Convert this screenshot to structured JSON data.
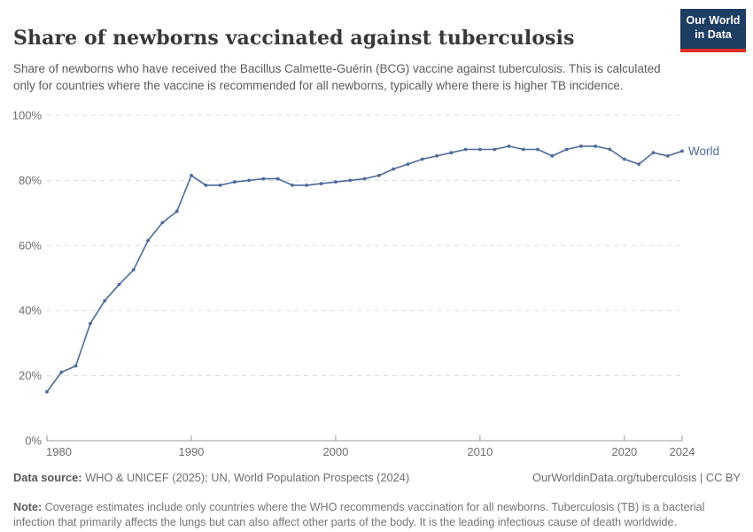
{
  "header": {
    "title": "Share of newborns vaccinated against tuberculosis",
    "subtitle": "Share of newborns who have received the Bacillus Calmette-Guérin (BCG) vaccine against tuberculosis. This is calculated only for countries where the vaccine is recommended for all newborns, typically where there is higher TB incidence.",
    "logo": {
      "line1": "Our World",
      "line2": "in Data",
      "bg_color": "#1d3d63",
      "stripe_color": "#dc3022"
    }
  },
  "chart_data": {
    "type": "line",
    "title": "Share of newborns vaccinated against tuberculosis",
    "xlabel": "",
    "ylabel": "",
    "xlim": [
      1980,
      2024
    ],
    "ylim": [
      0,
      100
    ],
    "grid": "horizontal-dashed",
    "legend_position": "end-of-line-label",
    "x_ticks": [
      1980,
      1990,
      2000,
      2010,
      2020,
      2024
    ],
    "x_tick_labels": [
      "1980",
      "1990",
      "2000",
      "2010",
      "2020",
      "2024"
    ],
    "y_ticks": [
      0,
      20,
      40,
      60,
      80,
      100
    ],
    "y_tick_labels": [
      "0%",
      "20%",
      "40%",
      "60%",
      "80%",
      "100%"
    ],
    "series": [
      {
        "name": "World",
        "color": "#4c6a9c",
        "x": [
          1980,
          1981,
          1982,
          1983,
          1984,
          1985,
          1986,
          1987,
          1988,
          1989,
          1990,
          1991,
          1992,
          1993,
          1994,
          1995,
          1996,
          1997,
          1998,
          1999,
          2000,
          2001,
          2002,
          2003,
          2004,
          2005,
          2006,
          2007,
          2008,
          2009,
          2010,
          2011,
          2012,
          2013,
          2014,
          2015,
          2016,
          2017,
          2018,
          2019,
          2020,
          2021,
          2022,
          2023,
          2024
        ],
        "values": [
          15,
          21,
          23,
          36,
          43,
          48,
          52.5,
          61.5,
          67,
          70.5,
          81.5,
          78.5,
          78.5,
          79.5,
          80,
          80.5,
          80.5,
          78.5,
          78.5,
          79,
          79.5,
          80,
          80.5,
          81.5,
          83.5,
          85,
          86.5,
          87.5,
          88.5,
          89.5,
          89.5,
          89.5,
          90.5,
          89.5,
          89.5,
          87.5,
          89.5,
          90.5,
          90.5,
          89.5,
          86.5,
          85,
          88.5,
          87.5,
          89
        ]
      }
    ],
    "colors": {
      "line": "#4c6a9c",
      "grid": "#dadada",
      "axis": "#999999",
      "tick_label": "#6e6e6e"
    }
  },
  "footer": {
    "data_source_label": "Data source:",
    "data_source_text": " WHO & UNICEF (2025); UN, World Population Prospects (2024)",
    "link_text": "OurWorldinData.org/tuberculosis | CC BY",
    "note_label": "Note:",
    "note_text": " Coverage estimates include only countries where the WHO recommends vaccination for all newborns. Tuberculosis (TB) is a bacterial infection that primarily affects the lungs but can also affect other parts of the body. It is the leading infectious cause of death worldwide."
  }
}
